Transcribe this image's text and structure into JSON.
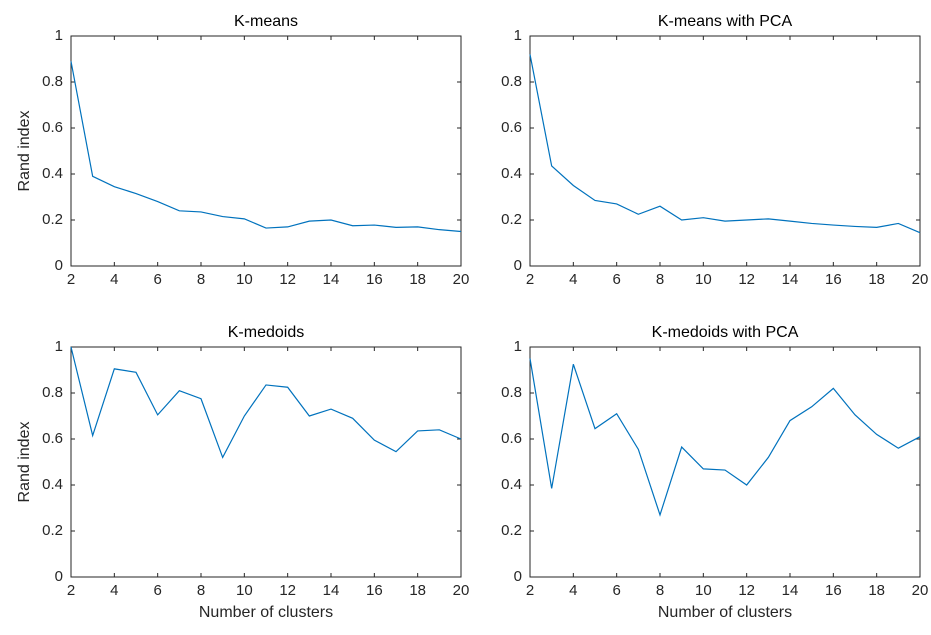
{
  "chart_data": [
    {
      "type": "line",
      "title": "K-means",
      "ylabel": "Rand index",
      "color": "#0072bd",
      "x": [
        2,
        3,
        4,
        5,
        6,
        7,
        8,
        9,
        10,
        11,
        12,
        13,
        14,
        15,
        16,
        17,
        18,
        19,
        20
      ],
      "values": [
        0.89,
        0.39,
        0.345,
        0.315,
        0.28,
        0.24,
        0.235,
        0.215,
        0.205,
        0.165,
        0.17,
        0.195,
        0.2,
        0.175,
        0.178,
        0.168,
        0.17,
        0.158,
        0.15
      ],
      "xlim": [
        2,
        20
      ],
      "xticks": [
        2,
        4,
        6,
        8,
        10,
        12,
        14,
        16,
        18,
        20
      ],
      "ylim": [
        0,
        1
      ],
      "yticks": [
        0,
        0.2,
        0.4,
        0.6,
        0.8,
        1
      ]
    },
    {
      "type": "line",
      "title": "K-means with PCA",
      "color": "#0072bd",
      "x": [
        2,
        3,
        4,
        5,
        6,
        7,
        8,
        9,
        10,
        11,
        12,
        13,
        14,
        15,
        16,
        17,
        18,
        19,
        20
      ],
      "values": [
        0.92,
        0.435,
        0.35,
        0.285,
        0.27,
        0.225,
        0.26,
        0.2,
        0.21,
        0.195,
        0.2,
        0.205,
        0.195,
        0.185,
        0.178,
        0.172,
        0.168,
        0.185,
        0.145
      ],
      "xlim": [
        2,
        20
      ],
      "xticks": [
        2,
        4,
        6,
        8,
        10,
        12,
        14,
        16,
        18,
        20
      ],
      "ylim": [
        0,
        1
      ],
      "yticks": [
        0,
        0.2,
        0.4,
        0.6,
        0.8,
        1
      ]
    },
    {
      "type": "line",
      "title": "K-medoids",
      "ylabel": "Rand index",
      "xlabel": "Number of clusters",
      "color": "#0072bd",
      "x": [
        2,
        3,
        4,
        5,
        6,
        7,
        8,
        9,
        10,
        11,
        12,
        13,
        14,
        15,
        16,
        17,
        18,
        19,
        20
      ],
      "values": [
        1.0,
        0.615,
        0.905,
        0.89,
        0.705,
        0.81,
        0.775,
        0.52,
        0.7,
        0.835,
        0.825,
        0.7,
        0.73,
        0.69,
        0.595,
        0.545,
        0.635,
        0.64,
        0.6
      ],
      "xlim": [
        2,
        20
      ],
      "xticks": [
        2,
        4,
        6,
        8,
        10,
        12,
        14,
        16,
        18,
        20
      ],
      "ylim": [
        0,
        1
      ],
      "yticks": [
        0,
        0.2,
        0.4,
        0.6,
        0.8,
        1
      ]
    },
    {
      "type": "line",
      "title": "K-medoids with PCA",
      "xlabel": "Number of clusters",
      "color": "#0072bd",
      "x": [
        2,
        3,
        4,
        5,
        6,
        7,
        8,
        9,
        10,
        11,
        12,
        13,
        14,
        15,
        16,
        17,
        18,
        19,
        20
      ],
      "values": [
        0.95,
        0.385,
        0.925,
        0.645,
        0.71,
        0.555,
        0.27,
        0.565,
        0.47,
        0.465,
        0.4,
        0.52,
        0.68,
        0.74,
        0.82,
        0.705,
        0.62,
        0.56,
        0.61
      ],
      "xlim": [
        2,
        20
      ],
      "xticks": [
        2,
        4,
        6,
        8,
        10,
        12,
        14,
        16,
        18,
        20
      ],
      "ylim": [
        0,
        1
      ],
      "yticks": [
        0,
        0.2,
        0.4,
        0.6,
        0.8,
        1
      ]
    }
  ]
}
